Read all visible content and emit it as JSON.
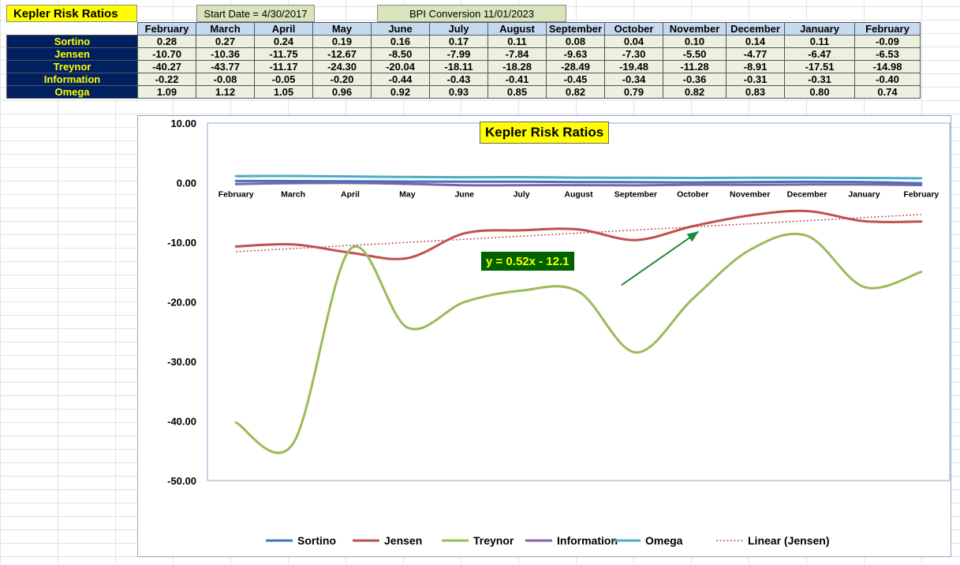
{
  "sheet": {
    "title": "Kepler Risk Ratios",
    "start_date": "Start Date = 4/30/2017",
    "conversion": "BPI Conversion 11/01/2023"
  },
  "table": {
    "months": [
      "February",
      "March",
      "April",
      "May",
      "June",
      "July",
      "August",
      "September",
      "October",
      "November",
      "December",
      "January",
      "February"
    ],
    "rows": [
      {
        "label": "Sortino",
        "values": [
          "0.28",
          "0.27",
          "0.24",
          "0.19",
          "0.16",
          "0.17",
          "0.11",
          "0.08",
          "0.04",
          "0.10",
          "0.14",
          "0.11",
          "-0.09"
        ]
      },
      {
        "label": "Jensen",
        "values": [
          "-10.70",
          "-10.36",
          "-11.75",
          "-12.67",
          "-8.50",
          "-7.99",
          "-7.84",
          "-9.63",
          "-7.30",
          "-5.50",
          "-4.77",
          "-6.47",
          "-6.53"
        ]
      },
      {
        "label": "Treynor",
        "values": [
          "-40.27",
          "-43.77",
          "-11.17",
          "-24.30",
          "-20.04",
          "-18.11",
          "-18.28",
          "-28.49",
          "-19.48",
          "-11.28",
          "-8.91",
          "-17.51",
          "-14.98"
        ]
      },
      {
        "label": "Information",
        "values": [
          "-0.22",
          "-0.08",
          "-0.05",
          "-0.20",
          "-0.44",
          "-0.43",
          "-0.41",
          "-0.45",
          "-0.34",
          "-0.36",
          "-0.31",
          "-0.31",
          "-0.40"
        ]
      },
      {
        "label": "Omega",
        "values": [
          "1.09",
          "1.12",
          "1.05",
          "0.96",
          "0.92",
          "0.93",
          "0.85",
          "0.82",
          "0.79",
          "0.82",
          "0.83",
          "0.80",
          "0.74"
        ]
      }
    ]
  },
  "chart_data": {
    "type": "line",
    "title": "Kepler Risk Ratios",
    "categories": [
      "February",
      "March",
      "April",
      "May",
      "June",
      "July",
      "August",
      "September",
      "October",
      "November",
      "December",
      "January",
      "February"
    ],
    "ylim": [
      -50,
      10
    ],
    "yticks": [
      "10.00",
      "0.00",
      "-10.00",
      "-20.00",
      "-30.00",
      "-40.00",
      "-50.00"
    ],
    "ytick_values": [
      10,
      0,
      -10,
      -20,
      -30,
      -40,
      -50
    ],
    "grid": false,
    "legend_position": "bottom",
    "series": [
      {
        "name": "Sortino",
        "color": "#4472c4",
        "values": [
          0.28,
          0.27,
          0.24,
          0.19,
          0.16,
          0.17,
          0.11,
          0.08,
          0.04,
          0.1,
          0.14,
          0.11,
          -0.09
        ]
      },
      {
        "name": "Jensen",
        "color": "#c0504d",
        "values": [
          -10.7,
          -10.36,
          -11.75,
          -12.67,
          -8.5,
          -7.99,
          -7.84,
          -9.63,
          -7.3,
          -5.5,
          -4.77,
          -6.47,
          -6.53
        ]
      },
      {
        "name": "Treynor",
        "color": "#9bbb59",
        "values": [
          -40.27,
          -43.77,
          -11.17,
          -24.3,
          -20.04,
          -18.11,
          -18.28,
          -28.49,
          -19.48,
          -11.28,
          -8.91,
          -17.51,
          -14.98
        ]
      },
      {
        "name": "Information",
        "color": "#8064a2",
        "values": [
          -0.22,
          -0.08,
          -0.05,
          -0.2,
          -0.44,
          -0.43,
          -0.41,
          -0.45,
          -0.34,
          -0.36,
          -0.31,
          -0.31,
          -0.4
        ]
      },
      {
        "name": "Omega",
        "color": "#4bacc6",
        "values": [
          1.09,
          1.12,
          1.05,
          0.96,
          0.92,
          0.93,
          0.85,
          0.82,
          0.79,
          0.82,
          0.83,
          0.8,
          0.74
        ]
      }
    ],
    "trendline": {
      "name": "Linear (Jensen)",
      "color": "#c0504d",
      "equation": "y = 0.52x - 12.1",
      "slope": 0.52,
      "intercept": -12.1
    },
    "annotation": {
      "type": "arrow",
      "color": "#1e8a3c",
      "text": ""
    }
  }
}
